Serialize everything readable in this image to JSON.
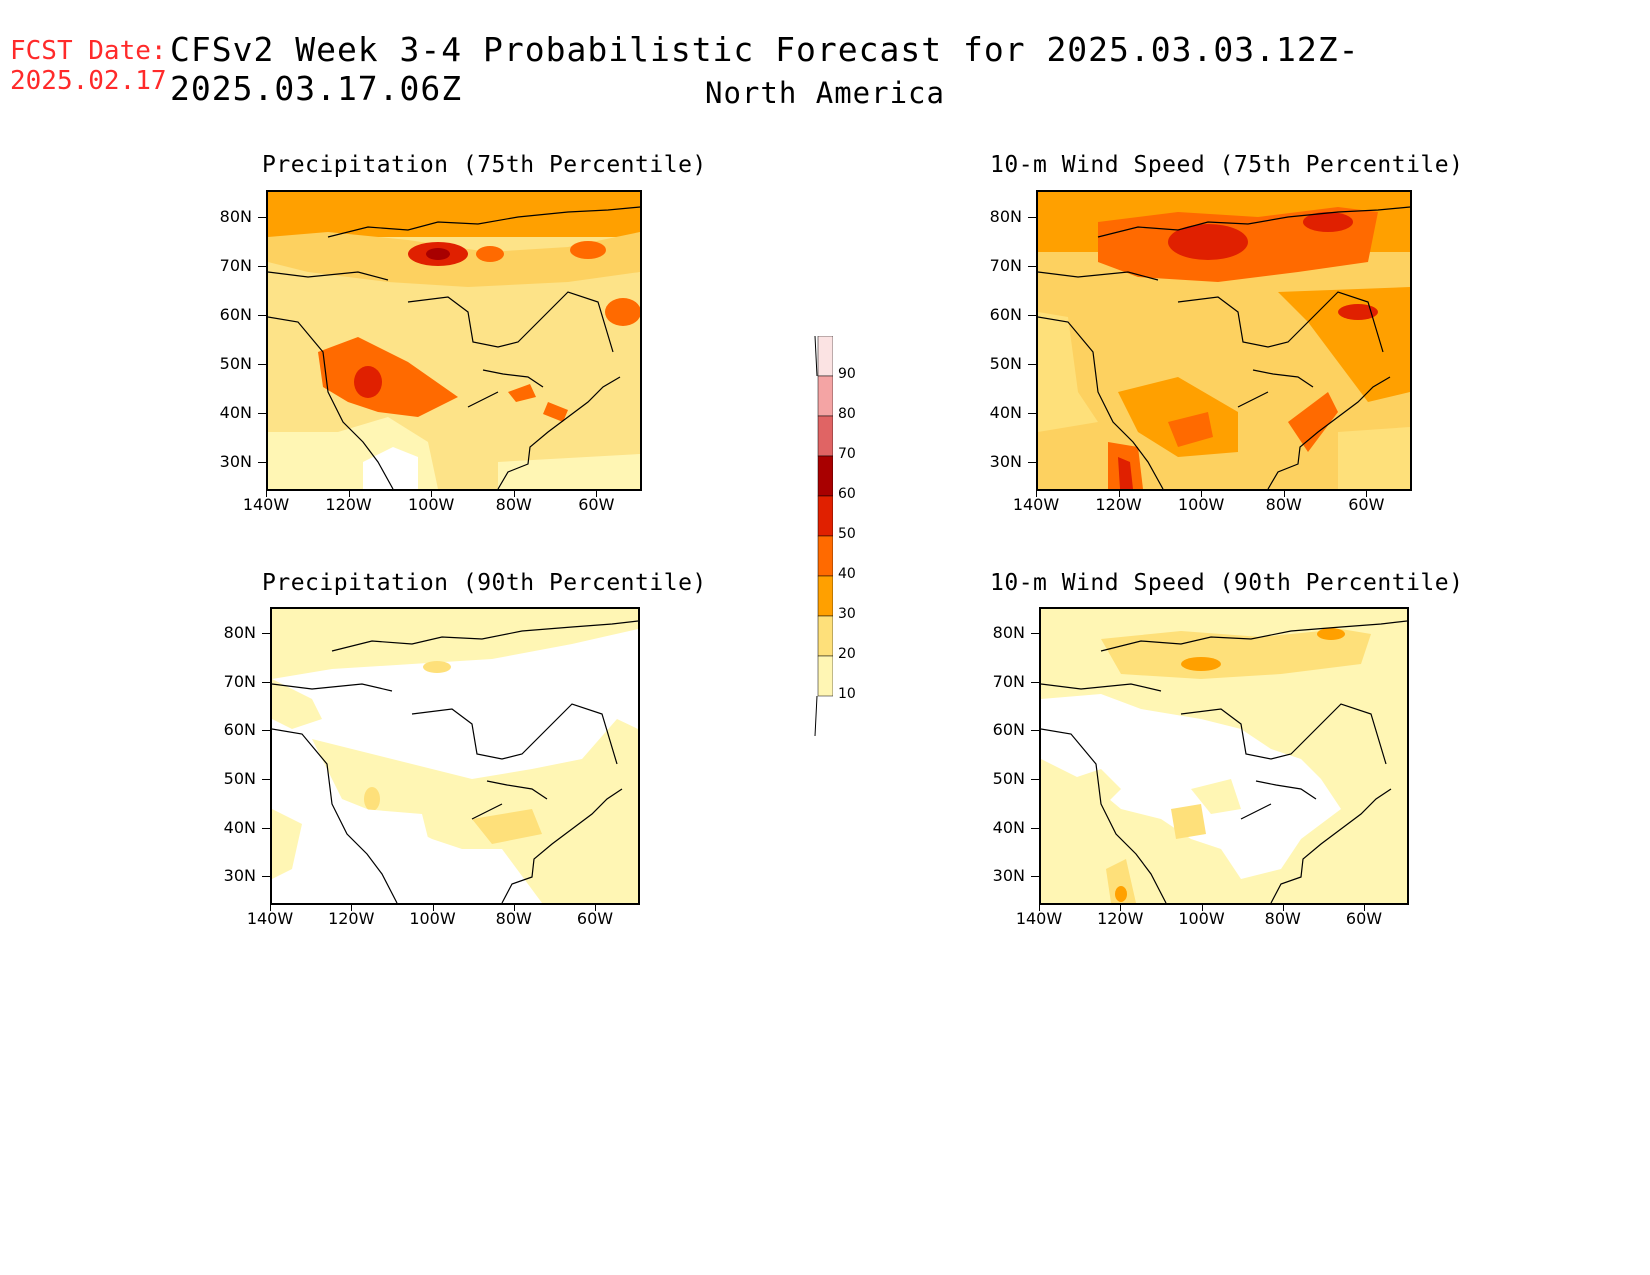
{
  "header": {
    "fcst_label": "FCST Date:",
    "fcst_date": "2025.02.17",
    "title": "CFSv2 Week 3-4 Probabilistic Forecast for 2025.03.03.12Z-2025.03.17.06Z",
    "subtitle": "North America"
  },
  "panels": [
    {
      "title": "Precipitation (75th Percentile)"
    },
    {
      "title": "10-m Wind Speed (75th Percentile)"
    },
    {
      "title": "Precipitation (90th Percentile)"
    },
    {
      "title": "10-m Wind Speed (90th Percentile)"
    }
  ],
  "axes": {
    "lat_labels": [
      "80N",
      "70N",
      "60N",
      "50N",
      "40N",
      "30N"
    ],
    "lon_labels": [
      "140W",
      "120W",
      "100W",
      "80W",
      "60W"
    ]
  },
  "colorbar": {
    "labels": [
      "90",
      "80",
      "70",
      "60",
      "50",
      "40",
      "30",
      "20",
      "10"
    ],
    "colors": [
      "#fbe3e3",
      "#f4a4a4",
      "#e06464",
      "#a80000",
      "#e02000",
      "#ff6a00",
      "#ffa000",
      "#fee07a",
      "#fff6b4"
    ]
  }
}
